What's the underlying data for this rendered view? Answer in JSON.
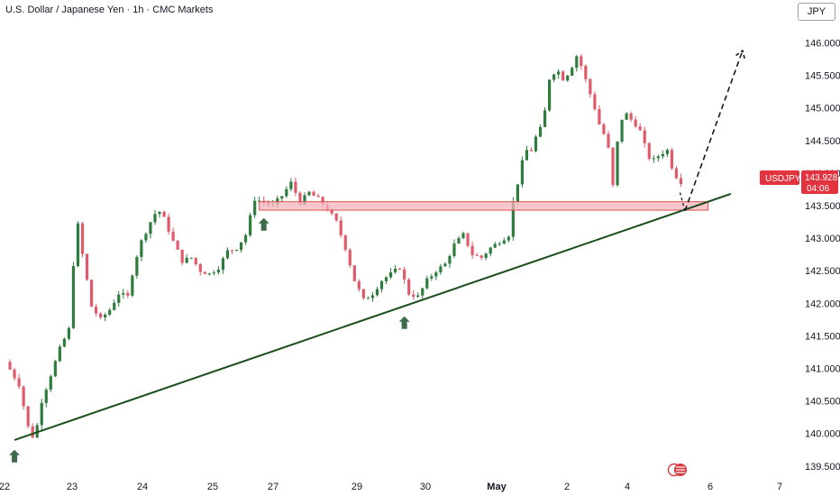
{
  "header": {
    "title": "U.S. Dollar / Japanese Yen · 1h · CMC Markets",
    "currency_button": "JPY"
  },
  "colors": {
    "up": "#2e7d3e",
    "down": "#e05a6b",
    "trendline": "#1b4d1b",
    "zone_fill": "#f4b4bc",
    "zone_border": "#d9534f",
    "arrow": "#3e6b4a",
    "tag_bg": "#e2333f"
  },
  "price_tag": {
    "symbol": "USDJPY",
    "price": "143.928",
    "countdown": "04:06"
  },
  "chart_data": {
    "type": "candlestick",
    "title": "U.S. Dollar / Japanese Yen · 1h · CMC Markets",
    "y_ticks": [
      "146.000",
      "145.500",
      "145.000",
      "144.500",
      "144.000",
      "143.500",
      "143.000",
      "142.500",
      "142.000",
      "141.500",
      "141.000",
      "140.500",
      "140.000",
      "139.500"
    ],
    "x_ticks": [
      "22",
      "23",
      "24",
      "25",
      "27",
      "29",
      "30",
      "May",
      "2",
      "4",
      "6",
      "7"
    ],
    "x_ticks_bold": [
      "May"
    ],
    "ylim": [
      139.37,
      146.33
    ],
    "grid": false,
    "close_path": [
      [
        0.0,
        141.1
      ],
      [
        1.5,
        140.75
      ],
      [
        2.5,
        140.1
      ],
      [
        3.2,
        139.9
      ],
      [
        4.0,
        140.5
      ],
      [
        5.0,
        140.9
      ],
      [
        6.0,
        141.3
      ],
      [
        7.0,
        141.6
      ],
      [
        7.5,
        142.6
      ],
      [
        8.0,
        143.2
      ],
      [
        8.5,
        142.75
      ],
      [
        9.5,
        141.95
      ],
      [
        10.5,
        141.75
      ],
      [
        11.5,
        141.9
      ],
      [
        12.5,
        142.15
      ],
      [
        13.5,
        142.1
      ],
      [
        14.2,
        142.6
      ],
      [
        15.0,
        142.95
      ],
      [
        16.0,
        143.25
      ],
      [
        16.8,
        143.45
      ],
      [
        17.5,
        143.3
      ],
      [
        18.5,
        142.95
      ],
      [
        19.5,
        142.65
      ],
      [
        20.5,
        142.7
      ],
      [
        21.5,
        142.5
      ],
      [
        22.5,
        142.45
      ],
      [
        23.5,
        142.55
      ],
      [
        24.5,
        142.8
      ],
      [
        25.5,
        142.85
      ],
      [
        26.5,
        143.05
      ],
      [
        27.5,
        143.6
      ],
      [
        28.5,
        143.55
      ],
      [
        29.5,
        143.5
      ],
      [
        30.5,
        143.65
      ],
      [
        31.5,
        143.85
      ],
      [
        32.5,
        143.55
      ],
      [
        33.5,
        143.7
      ],
      [
        34.5,
        143.6
      ],
      [
        35.5,
        143.45
      ],
      [
        36.5,
        143.25
      ],
      [
        37.5,
        142.85
      ],
      [
        38.5,
        142.35
      ],
      [
        39.5,
        142.05
      ],
      [
        40.5,
        142.15
      ],
      [
        41.5,
        142.35
      ],
      [
        42.5,
        142.45
      ],
      [
        43.5,
        142.55
      ],
      [
        44.5,
        142.15
      ],
      [
        45.5,
        142.1
      ],
      [
        46.5,
        142.35
      ],
      [
        47.5,
        142.5
      ],
      [
        48.5,
        142.6
      ],
      [
        49.5,
        142.9
      ],
      [
        50.5,
        143.05
      ],
      [
        51.5,
        142.75
      ],
      [
        52.5,
        142.7
      ],
      [
        53.5,
        142.85
      ],
      [
        54.5,
        142.95
      ],
      [
        55.5,
        143.05
      ],
      [
        56.0,
        143.55
      ],
      [
        56.5,
        143.85
      ],
      [
        57.3,
        144.35
      ],
      [
        58.0,
        144.35
      ],
      [
        58.5,
        144.55
      ],
      [
        59.3,
        144.75
      ],
      [
        60.0,
        145.45
      ],
      [
        60.8,
        145.6
      ],
      [
        61.5,
        145.45
      ],
      [
        62.2,
        145.55
      ],
      [
        63.0,
        145.8
      ],
      [
        63.5,
        145.65
      ],
      [
        64.3,
        145.3
      ],
      [
        65.0,
        145.0
      ],
      [
        65.8,
        144.6
      ],
      [
        66.3,
        144.6
      ],
      [
        67.0,
        143.8
      ],
      [
        67.6,
        144.6
      ],
      [
        68.2,
        144.95
      ],
      [
        68.8,
        144.85
      ],
      [
        69.5,
        144.75
      ],
      [
        70.2,
        144.6
      ],
      [
        70.8,
        144.25
      ],
      [
        71.5,
        144.2
      ],
      [
        72.3,
        144.3
      ],
      [
        73.0,
        144.35
      ],
      [
        73.5,
        144.1
      ],
      [
        74.0,
        143.95
      ],
      [
        74.6,
        143.85
      ],
      [
        74.9,
        143.73
      ]
    ],
    "trendline": {
      "from": [
        1,
        139.9
      ],
      "to": [
        80,
        143.68
      ]
    },
    "resistance_zone": {
      "from": 28,
      "to": 77.5,
      "top": 143.56,
      "bottom": 143.43
    },
    "projection": [
      [
        74.95,
        143.42
      ],
      [
        81.3,
        145.88
      ]
    ],
    "support_arrows": [
      {
        "x": 1,
        "price": 139.75
      },
      {
        "x": 28.5,
        "price": 143.31
      },
      {
        "x": 44,
        "price": 141.8
      }
    ]
  }
}
